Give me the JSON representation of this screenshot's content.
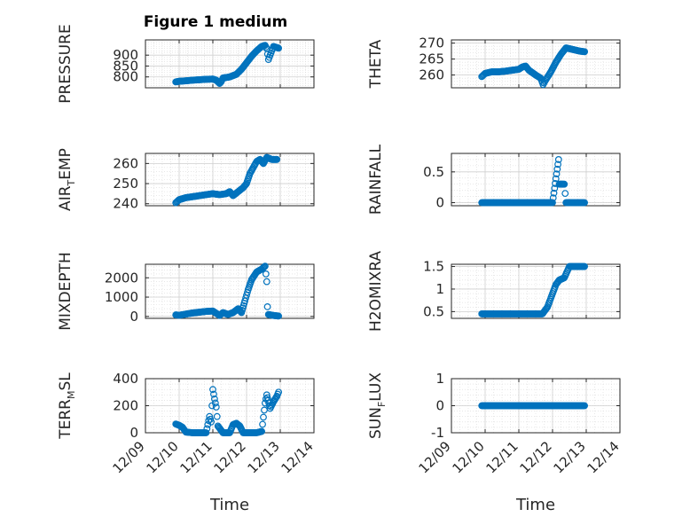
{
  "figure": {
    "title": "Figure 1 medium"
  },
  "colors": {
    "marker": "#0072BD",
    "axis": "#262626",
    "grid": "#d9d9d9"
  },
  "chart_data": [
    {
      "type": "scatter",
      "ylabel": "PRESSURE",
      "ylim": [
        750,
        970
      ],
      "yticks": [
        800,
        850,
        900
      ],
      "yticklabels": [
        "800",
        "",
        "900"
      ],
      "ytick_labels_shown": [
        "900",
        "850",
        "800"
      ],
      "xlim": [
        0,
        5
      ],
      "grid": true,
      "points": [
        [
          0.9,
          777
        ],
        [
          1.0,
          780
        ],
        [
          1.2,
          782
        ],
        [
          1.4,
          785
        ],
        [
          1.6,
          787
        ],
        [
          1.8,
          789
        ],
        [
          2.0,
          790
        ],
        [
          2.1,
          785
        ],
        [
          2.2,
          770
        ],
        [
          2.25,
          778
        ],
        [
          2.3,
          795
        ],
        [
          2.5,
          800
        ],
        [
          2.7,
          812
        ],
        [
          2.85,
          835
        ],
        [
          3.0,
          865
        ],
        [
          3.15,
          895
        ],
        [
          3.3,
          920
        ],
        [
          3.45,
          940
        ],
        [
          3.55,
          945
        ],
        [
          3.6,
          930
        ],
        [
          3.65,
          880
        ],
        [
          3.7,
          900
        ],
        [
          3.8,
          940
        ],
        [
          3.9,
          935
        ],
        [
          3.95,
          932
        ]
      ]
    },
    {
      "type": "scatter",
      "ylabel": "THETA",
      "ylim": [
        256,
        271
      ],
      "yticks": [
        260,
        265,
        270
      ],
      "yticklabels": [
        "260",
        "265",
        "270"
      ],
      "xlim": [
        0,
        5
      ],
      "grid": true,
      "points": [
        [
          0.9,
          259.5
        ],
        [
          1.0,
          260.5
        ],
        [
          1.2,
          261
        ],
        [
          1.4,
          261
        ],
        [
          1.6,
          261.2
        ],
        [
          1.8,
          261.5
        ],
        [
          2.0,
          261.8
        ],
        [
          2.1,
          262.5
        ],
        [
          2.2,
          262.8
        ],
        [
          2.3,
          261.5
        ],
        [
          2.5,
          260
        ],
        [
          2.65,
          259
        ],
        [
          2.72,
          257
        ],
        [
          2.8,
          258.5
        ],
        [
          2.95,
          261
        ],
        [
          3.1,
          264
        ],
        [
          3.25,
          266.5
        ],
        [
          3.4,
          268.5
        ],
        [
          3.6,
          268
        ],
        [
          3.8,
          267.5
        ],
        [
          3.95,
          267.3
        ]
      ]
    },
    {
      "type": "scatter",
      "ylabel": "AIR_TEMP",
      "ylabel_parts": [
        "AIR",
        "T",
        "EMP"
      ],
      "ylim": [
        239,
        265
      ],
      "yticks": [
        240,
        250,
        260
      ],
      "yticklabels": [
        "240",
        "250",
        "260"
      ],
      "xlim": [
        0,
        5
      ],
      "grid": true,
      "points": [
        [
          0.9,
          240.5
        ],
        [
          1.0,
          242
        ],
        [
          1.2,
          243
        ],
        [
          1.4,
          243.5
        ],
        [
          1.6,
          244
        ],
        [
          1.8,
          244.5
        ],
        [
          2.0,
          245
        ],
        [
          2.2,
          244.5
        ],
        [
          2.4,
          245
        ],
        [
          2.5,
          246
        ],
        [
          2.6,
          244
        ],
        [
          2.75,
          246
        ],
        [
          2.9,
          248
        ],
        [
          3.0,
          250
        ],
        [
          3.1,
          255
        ],
        [
          3.2,
          258
        ],
        [
          3.3,
          261
        ],
        [
          3.4,
          262
        ],
        [
          3.5,
          260
        ],
        [
          3.6,
          263
        ],
        [
          3.75,
          262
        ],
        [
          3.9,
          262
        ]
      ]
    },
    {
      "type": "scatter",
      "ylabel": "RAINFALL",
      "ylim": [
        -0.05,
        0.8
      ],
      "yticks": [
        0,
        0.5
      ],
      "yticklabels": [
        "0",
        "0.5"
      ],
      "xlim": [
        0,
        5
      ],
      "grid": true,
      "points": [
        [
          0.9,
          0
        ],
        [
          1.2,
          0
        ],
        [
          1.5,
          0
        ],
        [
          1.8,
          0
        ],
        [
          2.1,
          0
        ],
        [
          2.4,
          0
        ],
        [
          2.7,
          0
        ],
        [
          3.0,
          0
        ],
        [
          3.18,
          0.7
        ],
        [
          3.2,
          0.3
        ],
        [
          3.25,
          0.3
        ],
        [
          3.35,
          0.3
        ],
        [
          3.4,
          0
        ],
        [
          3.6,
          0
        ],
        [
          3.8,
          0
        ],
        [
          3.95,
          0
        ]
      ]
    },
    {
      "type": "scatter",
      "ylabel": "MIXDEPTH",
      "ylim": [
        -100,
        2700
      ],
      "yticks": [
        0,
        1000,
        2000
      ],
      "yticklabels": [
        "0",
        "1000",
        "2000"
      ],
      "xlim": [
        0,
        5
      ],
      "grid": true,
      "points": [
        [
          0.9,
          80
        ],
        [
          1.0,
          60
        ],
        [
          1.2,
          120
        ],
        [
          1.4,
          180
        ],
        [
          1.6,
          220
        ],
        [
          1.8,
          260
        ],
        [
          2.0,
          280
        ],
        [
          2.2,
          50
        ],
        [
          2.3,
          200
        ],
        [
          2.45,
          100
        ],
        [
          2.6,
          200
        ],
        [
          2.75,
          400
        ],
        [
          2.85,
          200
        ],
        [
          2.95,
          800
        ],
        [
          3.05,
          1400
        ],
        [
          3.15,
          1900
        ],
        [
          3.3,
          2300
        ],
        [
          3.45,
          2450
        ],
        [
          3.55,
          2600
        ],
        [
          3.6,
          1800
        ],
        [
          3.62,
          500
        ],
        [
          3.65,
          100
        ],
        [
          3.8,
          50
        ],
        [
          3.95,
          20
        ]
      ]
    },
    {
      "type": "scatter",
      "ylabel": "H2OMIXRA",
      "ylim": [
        0.35,
        1.55
      ],
      "yticks": [
        0.5,
        1,
        1.5
      ],
      "yticklabels": [
        "0.5",
        "1",
        "1.5"
      ],
      "xlim": [
        0,
        5
      ],
      "grid": true,
      "points": [
        [
          0.9,
          0.45
        ],
        [
          1.2,
          0.45
        ],
        [
          1.5,
          0.45
        ],
        [
          1.8,
          0.45
        ],
        [
          2.1,
          0.45
        ],
        [
          2.4,
          0.45
        ],
        [
          2.7,
          0.45
        ],
        [
          2.85,
          0.6
        ],
        [
          3.0,
          0.9
        ],
        [
          3.1,
          1.1
        ],
        [
          3.2,
          1.2
        ],
        [
          3.35,
          1.25
        ],
        [
          3.5,
          1.5
        ],
        [
          3.7,
          1.5
        ],
        [
          3.95,
          1.5
        ]
      ]
    },
    {
      "type": "scatter",
      "ylabel": "TERR_MSL",
      "ylabel_parts": [
        "TERR",
        "M",
        "SL"
      ],
      "ylim": [
        0,
        400
      ],
      "yticks": [
        0,
        200,
        400
      ],
      "yticklabels": [
        "0",
        "200",
        "400"
      ],
      "xlim": [
        0,
        5
      ],
      "grid": true,
      "xticklabels": [
        "12/09",
        "12/10",
        "12/11",
        "12/12",
        "12/13",
        "12/14"
      ],
      "xlabel": "Time",
      "points": [
        [
          0.9,
          65
        ],
        [
          1.0,
          55
        ],
        [
          1.1,
          40
        ],
        [
          1.2,
          5
        ],
        [
          1.4,
          0
        ],
        [
          1.6,
          0
        ],
        [
          1.8,
          0
        ],
        [
          1.9,
          120
        ],
        [
          1.95,
          80
        ],
        [
          2.0,
          320
        ],
        [
          2.05,
          250
        ],
        [
          2.1,
          190
        ],
        [
          2.15,
          50
        ],
        [
          2.3,
          0
        ],
        [
          2.5,
          0
        ],
        [
          2.6,
          60
        ],
        [
          2.7,
          70
        ],
        [
          2.8,
          50
        ],
        [
          2.9,
          0
        ],
        [
          3.1,
          0
        ],
        [
          3.3,
          0
        ],
        [
          3.45,
          10
        ],
        [
          3.55,
          220
        ],
        [
          3.6,
          280
        ],
        [
          3.7,
          180
        ],
        [
          3.8,
          230
        ],
        [
          3.9,
          270
        ],
        [
          3.95,
          300
        ]
      ]
    },
    {
      "type": "scatter",
      "ylabel": "SUN_FLUX",
      "ylabel_parts": [
        "SUN",
        "F",
        "LUX"
      ],
      "ylim": [
        -1,
        1
      ],
      "yticks": [
        -1,
        0,
        1
      ],
      "yticklabels": [
        "-1",
        "0",
        "1"
      ],
      "xlim": [
        0,
        5
      ],
      "grid": true,
      "xticklabels": [
        "12/09",
        "12/10",
        "12/11",
        "12/12",
        "12/13",
        "12/14"
      ],
      "xlabel": "Time",
      "points": [
        [
          0.9,
          0
        ],
        [
          1.3,
          0
        ],
        [
          1.7,
          0
        ],
        [
          2.1,
          0
        ],
        [
          2.5,
          0
        ],
        [
          2.9,
          0
        ],
        [
          3.3,
          0
        ],
        [
          3.7,
          0
        ],
        [
          3.95,
          0
        ]
      ]
    }
  ]
}
